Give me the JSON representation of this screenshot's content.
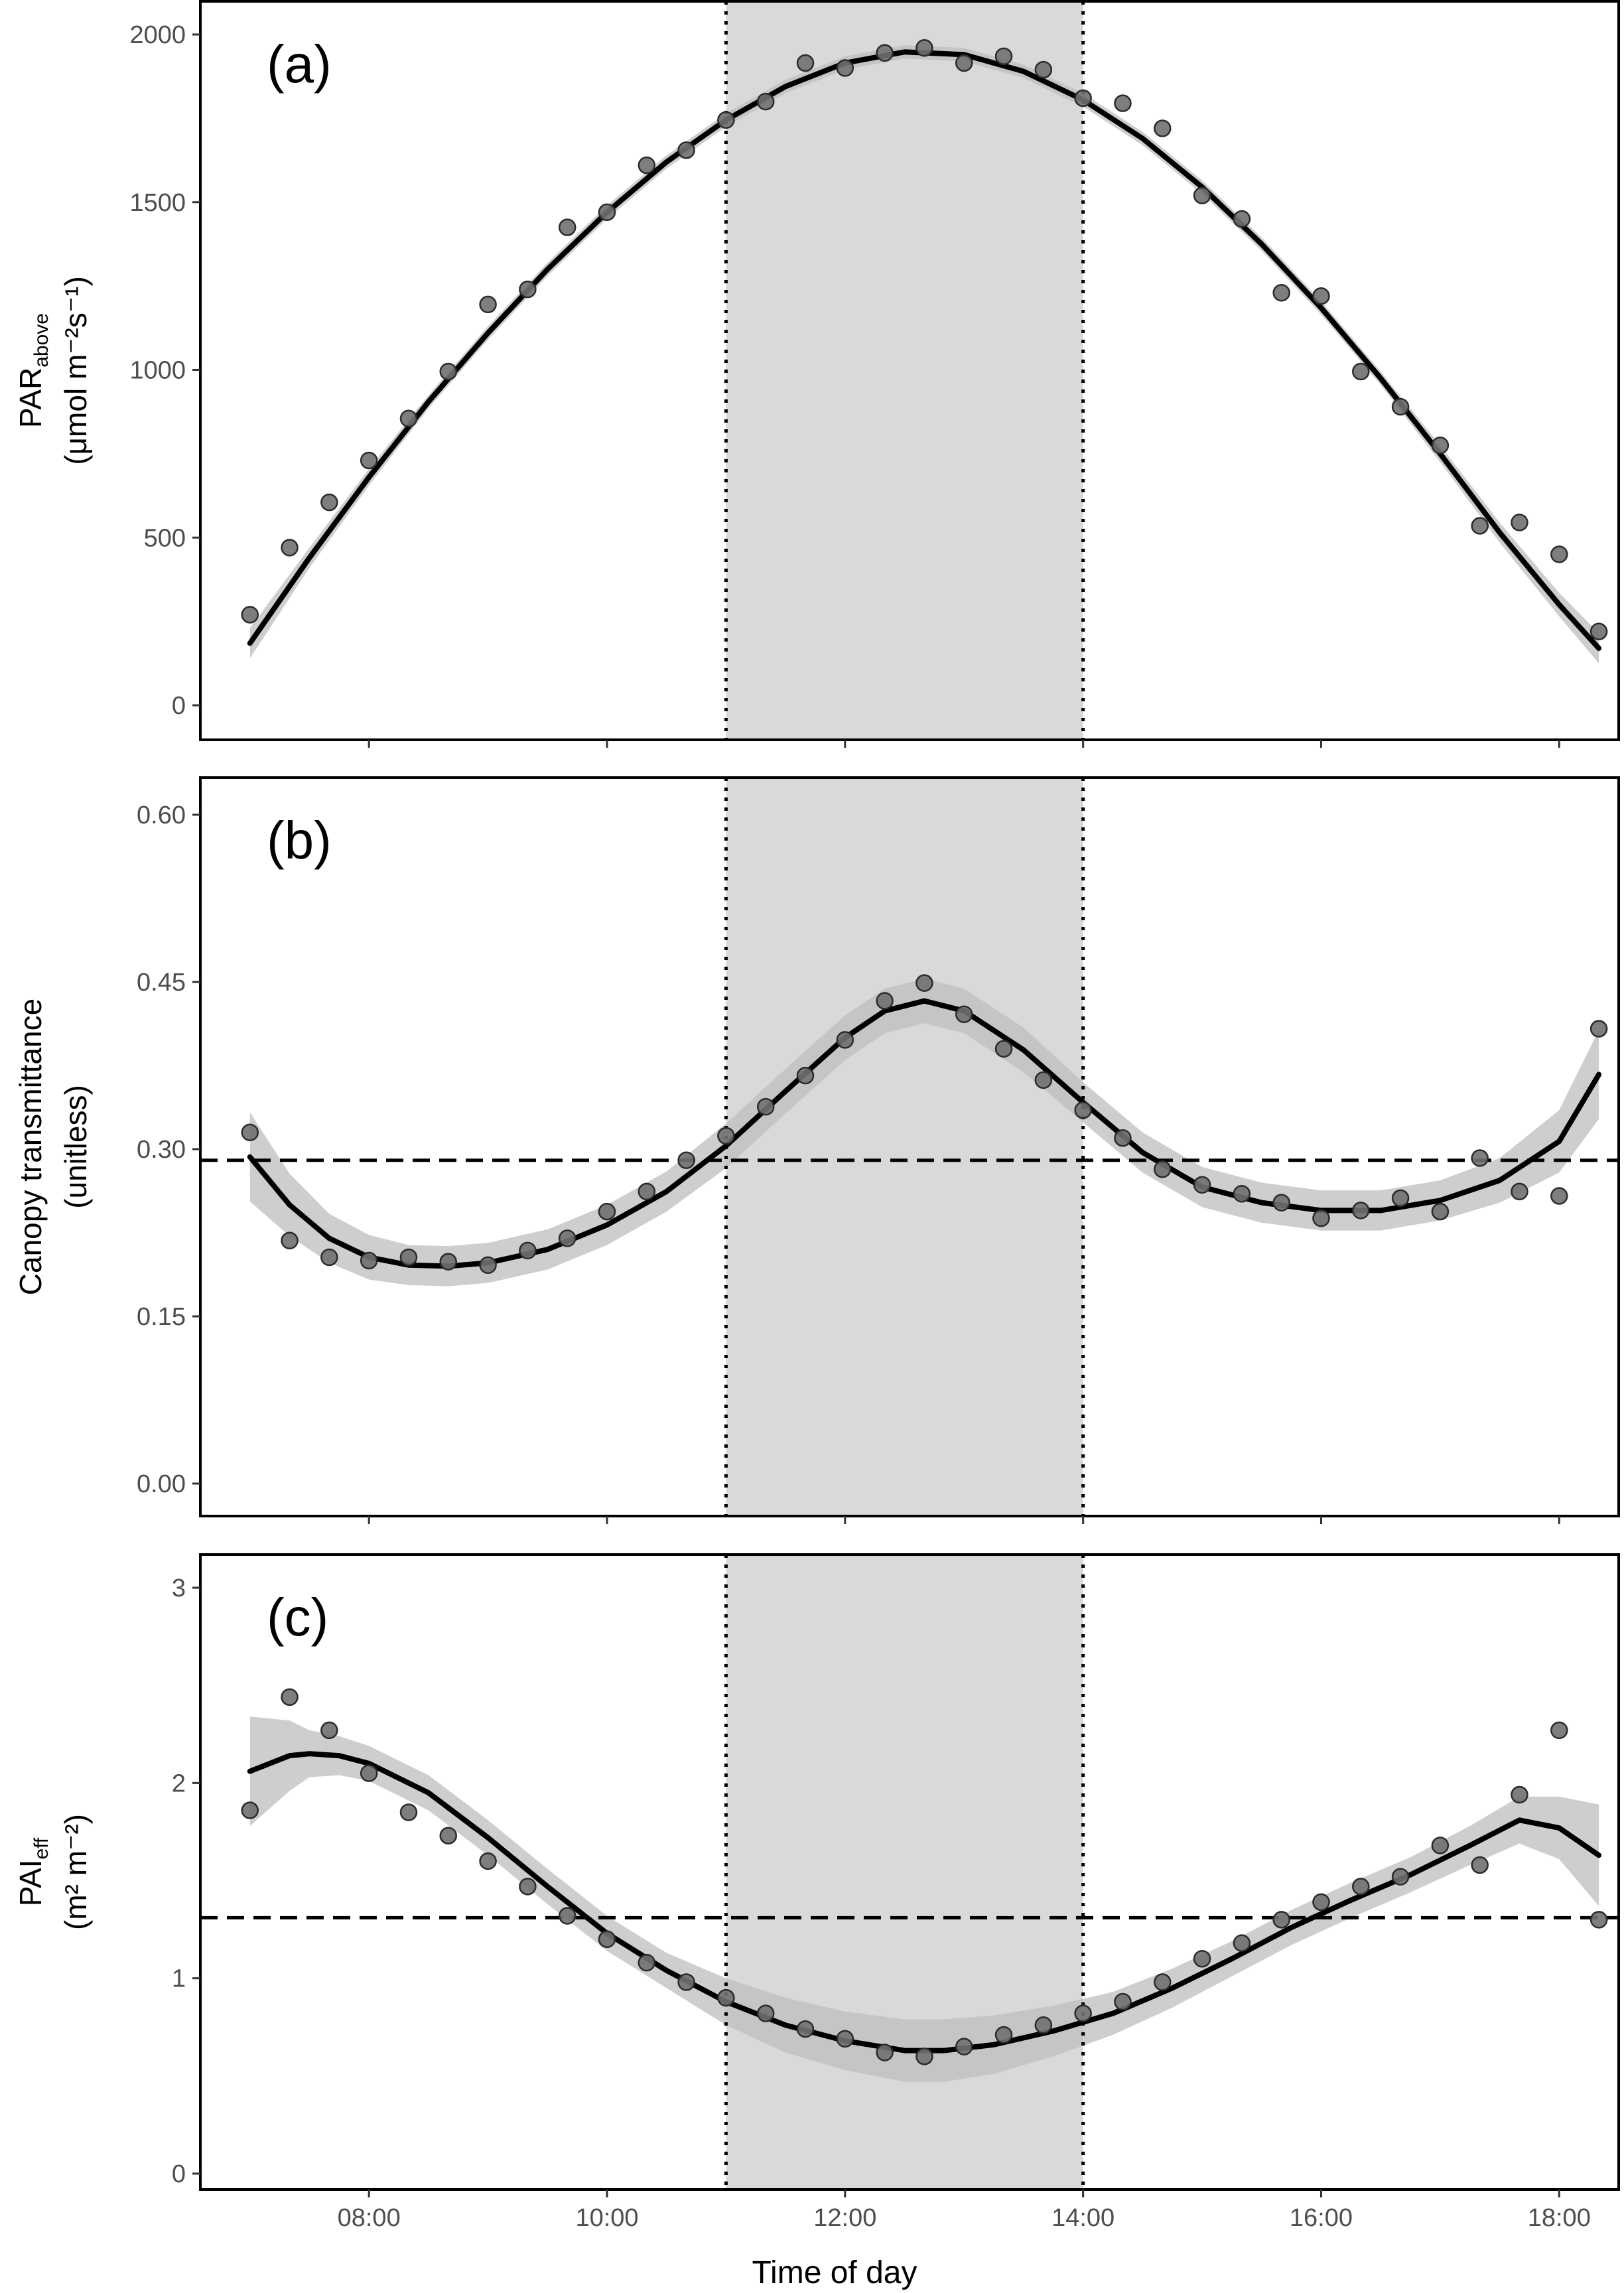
{
  "chart_data": [
    {
      "type": "scatter",
      "panel_label": "(a)",
      "ylabel": {
        "main": "PAR",
        "sub": "above",
        "units": "(μmol m⁻²s⁻¹)"
      },
      "ylim": [
        0,
        2000
      ],
      "yticks": [
        0,
        500,
        1000,
        1500,
        2000
      ],
      "shaded_window": [
        "11:00",
        "14:00"
      ],
      "reference_line": null,
      "points": [
        [
          "07:00",
          270
        ],
        [
          "07:20",
          470
        ],
        [
          "07:40",
          605
        ],
        [
          "08:00",
          730
        ],
        [
          "08:20",
          855
        ],
        [
          "08:40",
          995
        ],
        [
          "09:00",
          1195
        ],
        [
          "09:20",
          1240
        ],
        [
          "09:40",
          1425
        ],
        [
          "10:00",
          1470
        ],
        [
          "10:20",
          1610
        ],
        [
          "10:40",
          1655
        ],
        [
          "11:00",
          1745
        ],
        [
          "11:20",
          1800
        ],
        [
          "11:40",
          1915
        ],
        [
          "12:00",
          1900
        ],
        [
          "12:20",
          1945
        ],
        [
          "12:40",
          1960
        ],
        [
          "13:00",
          1915
        ],
        [
          "13:20",
          1935
        ],
        [
          "13:40",
          1895
        ],
        [
          "14:00",
          1810
        ],
        [
          "14:20",
          1795
        ],
        [
          "14:40",
          1720
        ],
        [
          "15:00",
          1520
        ],
        [
          "15:20",
          1450
        ],
        [
          "15:40",
          1230
        ],
        [
          "16:00",
          1220
        ],
        [
          "16:20",
          995
        ],
        [
          "16:40",
          890
        ],
        [
          "17:00",
          775
        ],
        [
          "17:20",
          535
        ],
        [
          "17:40",
          545
        ],
        [
          "18:00",
          450
        ],
        [
          "18:20",
          220
        ]
      ],
      "fit": [
        [
          "07:00",
          185
        ],
        [
          "07:30",
          440
        ],
        [
          "08:00",
          680
        ],
        [
          "08:30",
          905
        ],
        [
          "09:00",
          1110
        ],
        [
          "09:30",
          1300
        ],
        [
          "10:00",
          1470
        ],
        [
          "10:30",
          1620
        ],
        [
          "11:00",
          1745
        ],
        [
          "11:30",
          1845
        ],
        [
          "12:00",
          1915
        ],
        [
          "12:30",
          1948
        ],
        [
          "13:00",
          1940
        ],
        [
          "13:30",
          1890
        ],
        [
          "14:00",
          1805
        ],
        [
          "14:30",
          1690
        ],
        [
          "15:00",
          1545
        ],
        [
          "15:30",
          1375
        ],
        [
          "16:00",
          1185
        ],
        [
          "16:30",
          975
        ],
        [
          "17:00",
          750
        ],
        [
          "17:30",
          515
        ],
        [
          "18:00",
          300
        ],
        [
          "18:20",
          170
        ]
      ],
      "ci_halfwidth": [
        45,
        30,
        25,
        20,
        20,
        20,
        20,
        20,
        20,
        20,
        20,
        20,
        20,
        20,
        20,
        20,
        20,
        20,
        20,
        20,
        25,
        30,
        35,
        45
      ]
    },
    {
      "type": "scatter",
      "panel_label": "(b)",
      "ylabel": {
        "main": "Canopy transmittance",
        "units": "(unitless)"
      },
      "ylim": [
        0,
        0.6
      ],
      "yticks": [
        "0.00",
        "0.15",
        "0.30",
        "0.45",
        "0.60"
      ],
      "shaded_window": [
        "11:00",
        "14:00"
      ],
      "reference_line": 0.29,
      "points": [
        [
          "07:00",
          0.315
        ],
        [
          "07:20",
          0.218
        ],
        [
          "07:40",
          0.203
        ],
        [
          "08:00",
          0.2
        ],
        [
          "08:20",
          0.203
        ],
        [
          "08:40",
          0.199
        ],
        [
          "09:00",
          0.196
        ],
        [
          "09:20",
          0.209
        ],
        [
          "09:40",
          0.22
        ],
        [
          "10:00",
          0.244
        ],
        [
          "10:20",
          0.262
        ],
        [
          "10:40",
          0.29
        ],
        [
          "11:00",
          0.312
        ],
        [
          "11:20",
          0.338
        ],
        [
          "11:40",
          0.366
        ],
        [
          "12:00",
          0.398
        ],
        [
          "12:20",
          0.433
        ],
        [
          "12:40",
          0.449
        ],
        [
          "13:00",
          0.421
        ],
        [
          "13:20",
          0.39
        ],
        [
          "13:40",
          0.362
        ],
        [
          "14:00",
          0.335
        ],
        [
          "14:20",
          0.31
        ],
        [
          "14:40",
          0.282
        ],
        [
          "15:00",
          0.268
        ],
        [
          "15:20",
          0.26
        ],
        [
          "15:40",
          0.252
        ],
        [
          "16:00",
          0.238
        ],
        [
          "16:20",
          0.245
        ],
        [
          "16:40",
          0.256
        ],
        [
          "17:00",
          0.244
        ],
        [
          "17:20",
          0.292
        ],
        [
          "17:40",
          0.262
        ],
        [
          "18:00",
          0.258
        ],
        [
          "18:20",
          0.408
        ]
      ],
      "fit": [
        [
          "07:00",
          0.293
        ],
        [
          "07:20",
          0.25
        ],
        [
          "07:40",
          0.22
        ],
        [
          "08:00",
          0.203
        ],
        [
          "08:20",
          0.196
        ],
        [
          "08:40",
          0.195
        ],
        [
          "09:00",
          0.198
        ],
        [
          "09:30",
          0.21
        ],
        [
          "10:00",
          0.232
        ],
        [
          "10:30",
          0.262
        ],
        [
          "11:00",
          0.303
        ],
        [
          "11:30",
          0.352
        ],
        [
          "12:00",
          0.4
        ],
        [
          "12:20",
          0.424
        ],
        [
          "12:40",
          0.433
        ],
        [
          "13:00",
          0.424
        ],
        [
          "13:30",
          0.389
        ],
        [
          "14:00",
          0.342
        ],
        [
          "14:30",
          0.297
        ],
        [
          "15:00",
          0.266
        ],
        [
          "15:30",
          0.252
        ],
        [
          "16:00",
          0.245
        ],
        [
          "16:30",
          0.245
        ],
        [
          "17:00",
          0.254
        ],
        [
          "17:30",
          0.272
        ],
        [
          "18:00",
          0.307
        ],
        [
          "18:20",
          0.367
        ]
      ],
      "ci_halfwidth": [
        0.04,
        0.028,
        0.022,
        0.02,
        0.018,
        0.018,
        0.018,
        0.018,
        0.018,
        0.018,
        0.02,
        0.02,
        0.02,
        0.02,
        0.02,
        0.02,
        0.02,
        0.018,
        0.018,
        0.018,
        0.018,
        0.018,
        0.018,
        0.018,
        0.02,
        0.028,
        0.04
      ]
    },
    {
      "type": "scatter",
      "panel_label": "(c)",
      "ylabel": {
        "main": "PAI",
        "sub": "eff",
        "units": "(m² m⁻²)"
      },
      "ylim": [
        0,
        3
      ],
      "yticks": [
        0,
        1,
        2,
        3
      ],
      "shaded_window": [
        "11:00",
        "14:00"
      ],
      "reference_line": 1.31,
      "points": [
        [
          "07:00",
          1.86
        ],
        [
          "07:20",
          2.44
        ],
        [
          "07:40",
          2.27
        ],
        [
          "08:00",
          2.05
        ],
        [
          "08:20",
          1.85
        ],
        [
          "08:40",
          1.73
        ],
        [
          "09:00",
          1.6
        ],
        [
          "09:20",
          1.47
        ],
        [
          "09:40",
          1.32
        ],
        [
          "10:00",
          1.2
        ],
        [
          "10:20",
          1.08
        ],
        [
          "10:40",
          0.98
        ],
        [
          "11:00",
          0.9
        ],
        [
          "11:20",
          0.82
        ],
        [
          "11:40",
          0.74
        ],
        [
          "12:00",
          0.69
        ],
        [
          "12:20",
          0.62
        ],
        [
          "12:40",
          0.6
        ],
        [
          "13:00",
          0.65
        ],
        [
          "13:20",
          0.71
        ],
        [
          "13:40",
          0.76
        ],
        [
          "14:00",
          0.82
        ],
        [
          "14:20",
          0.88
        ],
        [
          "14:40",
          0.98
        ],
        [
          "15:00",
          1.1
        ],
        [
          "15:20",
          1.18
        ],
        [
          "15:40",
          1.3
        ],
        [
          "16:00",
          1.39
        ],
        [
          "16:20",
          1.47
        ],
        [
          "16:40",
          1.52
        ],
        [
          "17:00",
          1.68
        ],
        [
          "17:20",
          1.58
        ],
        [
          "17:40",
          1.94
        ],
        [
          "18:00",
          2.27
        ],
        [
          "18:20",
          1.3
        ]
      ],
      "fit": [
        [
          "07:00",
          2.06
        ],
        [
          "07:20",
          2.14
        ],
        [
          "07:30",
          2.15
        ],
        [
          "07:45",
          2.14
        ],
        [
          "08:00",
          2.1
        ],
        [
          "08:30",
          1.95
        ],
        [
          "09:00",
          1.72
        ],
        [
          "09:30",
          1.47
        ],
        [
          "10:00",
          1.23
        ],
        [
          "10:30",
          1.04
        ],
        [
          "11:00",
          0.88
        ],
        [
          "11:30",
          0.76
        ],
        [
          "12:00",
          0.68
        ],
        [
          "12:30",
          0.63
        ],
        [
          "12:50",
          0.63
        ],
        [
          "13:15",
          0.66
        ],
        [
          "13:45",
          0.73
        ],
        [
          "14:15",
          0.82
        ],
        [
          "14:45",
          0.95
        ],
        [
          "15:15",
          1.1
        ],
        [
          "15:45",
          1.26
        ],
        [
          "16:15",
          1.4
        ],
        [
          "16:45",
          1.53
        ],
        [
          "17:15",
          1.68
        ],
        [
          "17:40",
          1.81
        ],
        [
          "18:00",
          1.77
        ],
        [
          "18:20",
          1.63
        ]
      ],
      "ci_halfwidth": [
        0.28,
        0.18,
        0.12,
        0.1,
        0.09,
        0.09,
        0.09,
        0.09,
        0.09,
        0.09,
        0.12,
        0.14,
        0.15,
        0.16,
        0.16,
        0.15,
        0.13,
        0.11,
        0.1,
        0.09,
        0.09,
        0.09,
        0.09,
        0.1,
        0.12,
        0.16,
        0.26
      ]
    }
  ],
  "x_axis": {
    "label": "Time of day",
    "range": [
      "06:35",
      "18:30"
    ],
    "tick_labels": [
      "08:00",
      "10:00",
      "12:00",
      "14:00",
      "16:00",
      "18:00"
    ]
  },
  "colors": {
    "shade": "#d9d9d9",
    "ci_band": "#bdbdbd",
    "fit_line": "#000000",
    "point_fill": "#707070",
    "point_edge": "#2b2b2b"
  }
}
